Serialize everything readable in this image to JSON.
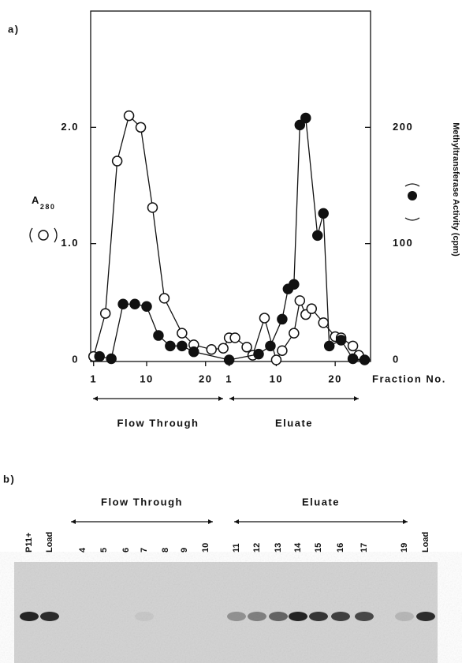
{
  "chart_data": {
    "type": "line",
    "panel_label": "a)",
    "xlabel": "Fraction No.",
    "ylabel": "A",
    "ylabel_subscript": "280",
    "y2label": "Methyltransferase Activity (cpm)",
    "groups": [
      "Flow Through",
      "Eluate"
    ],
    "xlim": [
      0.5,
      48
    ],
    "xticks": [
      1,
      10,
      20,
      {
        "value": 24,
        "label": "1"
      },
      {
        "value": 32,
        "label": "10"
      },
      {
        "value": 42,
        "label": "20"
      }
    ],
    "ylim": [
      0,
      3
    ],
    "yticks": [
      0,
      {
        "value": 1,
        "label": "1.0"
      },
      {
        "value": 2,
        "label": "2.0"
      }
    ],
    "y2lim": [
      0,
      300
    ],
    "y2ticks": [
      0,
      100,
      200
    ],
    "series": [
      {
        "marker": "open",
        "color": "#111111",
        "x": [
          1,
          3,
          5,
          7,
          9,
          11,
          13,
          16,
          18,
          21,
          23,
          24,
          25,
          27,
          28,
          30,
          32,
          33,
          35,
          36,
          37,
          38,
          40,
          42,
          43,
          45,
          46
        ],
        "values": [
          0.03,
          0.4,
          1.71,
          2.1,
          2.0,
          1.31,
          0.53,
          0.23,
          0.13,
          0.09,
          0.1,
          0.19,
          0.19,
          0.11,
          0.04,
          0.36,
          0,
          0.08,
          0.23,
          0.51,
          0.39,
          0.44,
          0.32,
          0.2,
          0.19,
          0.12,
          0.04
        ]
      },
      {
        "marker": "filled",
        "color": "#111111",
        "axis": "y2",
        "x": [
          2,
          4,
          6,
          8,
          10,
          12,
          14,
          16,
          18,
          24,
          29,
          31,
          33,
          34,
          35,
          36,
          37,
          39,
          40,
          41,
          43,
          45,
          47
        ],
        "values": [
          3,
          1,
          48,
          48,
          46,
          21,
          12,
          12,
          7,
          0,
          5,
          12,
          35,
          61,
          65,
          202,
          208,
          107,
          126,
          12,
          17,
          1,
          0
        ]
      }
    ]
  },
  "gel": {
    "panel_label": "b)",
    "groups": [
      "Flow Through",
      "Eluate"
    ],
    "lanes": [
      "P11+",
      "Load",
      "4",
      "5",
      "6",
      "7",
      "8",
      "9",
      "10",
      "11",
      "12",
      "13",
      "14",
      "15",
      "16",
      "17",
      "19",
      "Load"
    ]
  }
}
